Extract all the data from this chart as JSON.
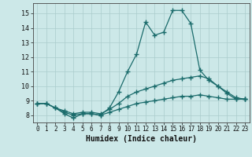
{
  "xlabel": "Humidex (Indice chaleur)",
  "background_color": "#cce8e8",
  "grid_color": "#aacccc",
  "line_color": "#1a6b6b",
  "xlim": [
    -0.5,
    23.5
  ],
  "ylim": [
    7.5,
    15.7
  ],
  "xticks": [
    0,
    1,
    2,
    3,
    4,
    5,
    6,
    7,
    8,
    9,
    10,
    11,
    12,
    13,
    14,
    15,
    16,
    17,
    18,
    19,
    20,
    21,
    22,
    23
  ],
  "yticks": [
    8,
    9,
    10,
    11,
    12,
    13,
    14,
    15
  ],
  "series1_x": [
    0,
    1,
    2,
    3,
    4,
    5,
    6,
    7,
    8,
    9,
    10,
    11,
    12,
    13,
    14,
    15,
    16,
    17,
    18,
    19,
    20,
    21,
    22,
    23
  ],
  "series1_y": [
    8.8,
    8.8,
    8.5,
    8.1,
    7.8,
    8.1,
    8.1,
    8.0,
    8.5,
    9.6,
    11.0,
    12.2,
    14.4,
    13.5,
    13.7,
    15.2,
    15.2,
    14.3,
    11.1,
    10.4,
    10.0,
    9.5,
    9.1,
    9.1
  ],
  "series2_x": [
    0,
    1,
    2,
    3,
    4,
    5,
    6,
    7,
    8,
    9,
    10,
    11,
    12,
    13,
    14,
    15,
    16,
    17,
    18,
    19,
    20,
    21,
    22,
    23
  ],
  "series2_y": [
    8.8,
    8.8,
    8.5,
    8.3,
    8.1,
    8.2,
    8.2,
    8.1,
    8.4,
    8.8,
    9.3,
    9.6,
    9.8,
    10.0,
    10.2,
    10.4,
    10.5,
    10.6,
    10.7,
    10.5,
    10.0,
    9.6,
    9.2,
    9.1
  ],
  "series3_x": [
    0,
    1,
    2,
    3,
    4,
    5,
    6,
    7,
    8,
    9,
    10,
    11,
    12,
    13,
    14,
    15,
    16,
    17,
    18,
    19,
    20,
    21,
    22,
    23
  ],
  "series3_y": [
    8.8,
    8.8,
    8.5,
    8.2,
    8.0,
    8.1,
    8.1,
    8.0,
    8.2,
    8.4,
    8.6,
    8.8,
    8.9,
    9.0,
    9.1,
    9.2,
    9.3,
    9.3,
    9.4,
    9.3,
    9.2,
    9.1,
    9.1,
    9.1
  ]
}
